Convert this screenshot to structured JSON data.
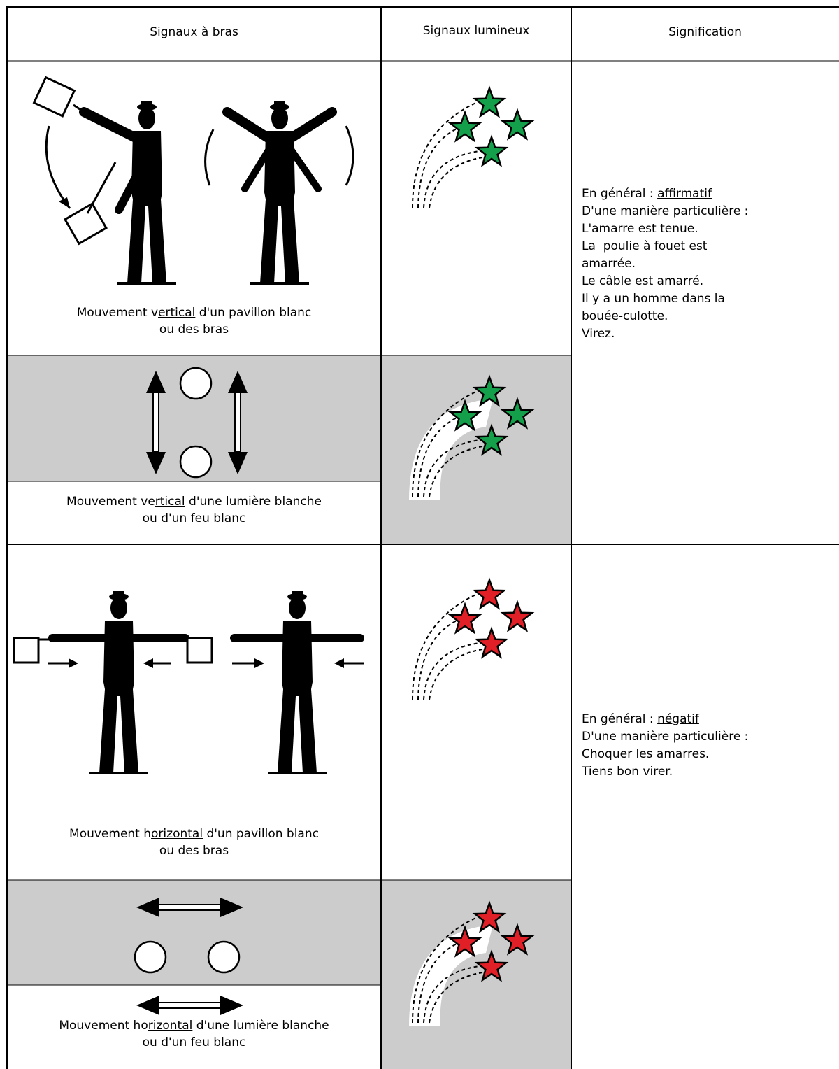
{
  "header": {
    "columns": [
      "Signaux à bras",
      "Signaux lumineux",
      "Signification"
    ]
  },
  "rows": [
    {
      "flag_caption": {
        "before": "Mouvement v",
        "underlined": "ertical",
        "after": " d'un pavillon blanc",
        "line2": "ou des bras"
      },
      "light_caption": {
        "before": "Mouvement ve",
        "underlined": "rtical",
        "after": " d'une lumière blanche",
        "line2": "ou d'un feu blanc"
      },
      "meaning": {
        "lead": "En général : ",
        "keyword": "affirmatif",
        "lines": [
          "D'une manière particulière :",
          "L'amarre est tenue.",
          "La  poulie à fouet est",
          "amarrée.",
          "Le câble est amarré.",
          "Il y a un homme dans la",
          "bouée-culotte.",
          "Virez."
        ]
      }
    },
    {
      "flag_caption": {
        "before": "Mouvement h",
        "underlined": "orizontal",
        "after": " d'un pavillon blanc",
        "line2": "ou des bras"
      },
      "light_caption": {
        "before": "Mouvement ho",
        "underlined": "rizontal",
        "after": " d'une lumière blanche",
        "line2": "ou d'un feu blanc"
      },
      "meaning": {
        "lead": "En général : ",
        "keyword": "négatif",
        "lines": [
          "D'une manière particulière :",
          "Choquer les amarres.",
          "Tiens bon virer."
        ]
      }
    }
  ]
}
